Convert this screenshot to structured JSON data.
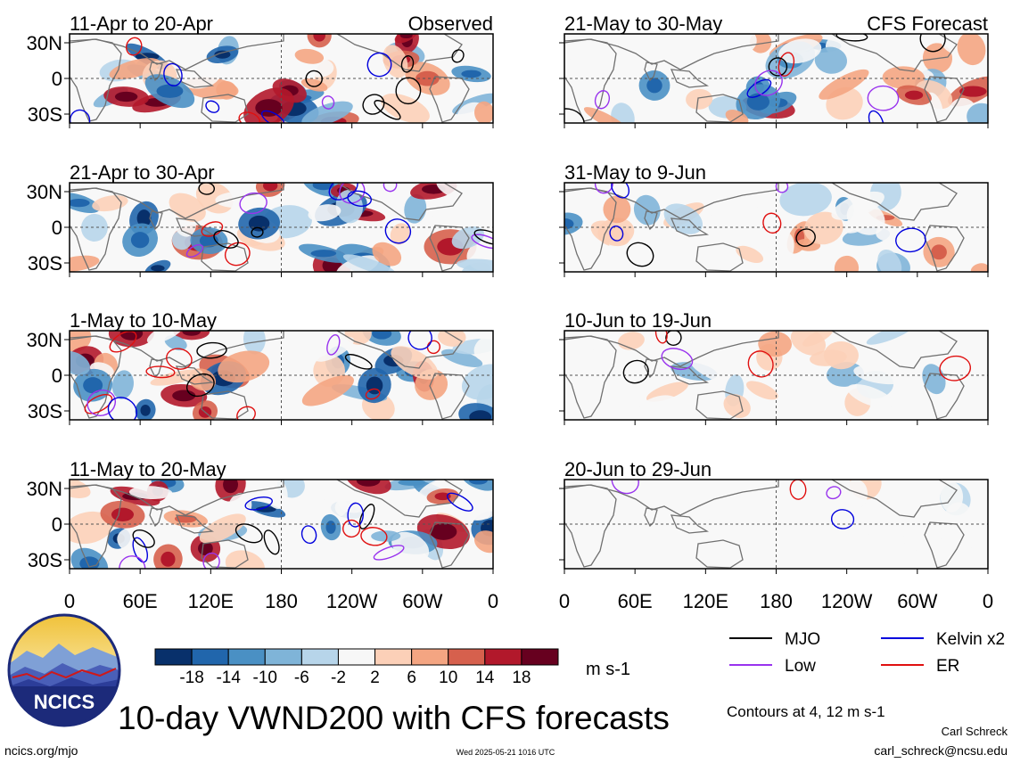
{
  "columns": [
    {
      "header_right": "Observed",
      "panels": [
        {
          "title": "11-Apr to 20-Apr"
        },
        {
          "title": "21-Apr to 30-Apr"
        },
        {
          "title": "1-May to 10-May"
        },
        {
          "title": "11-May to 20-May"
        }
      ]
    },
    {
      "header_right": "CFS Forecast",
      "panels": [
        {
          "title": "21-May to 30-May"
        },
        {
          "title": "31-May to 9-Jun"
        },
        {
          "title": "10-Jun to 19-Jun"
        },
        {
          "title": "20-Jun to 29-Jun"
        }
      ]
    }
  ],
  "lat_labels": [
    "30N",
    "0",
    "30S"
  ],
  "lon_labels": [
    "0",
    "60E",
    "120E",
    "180",
    "120W",
    "60W",
    "0"
  ],
  "colorbar": {
    "tick_labels": [
      "-18",
      "-14",
      "-10",
      "-6",
      "-2",
      "2",
      "6",
      "10",
      "14",
      "18"
    ],
    "unit": "m s-1",
    "colors": [
      "#08306b",
      "#2166ac",
      "#4a90c4",
      "#7fb4d8",
      "#b7d5ea",
      "#f7f7f7",
      "#fcd0b8",
      "#f4a582",
      "#d6604d",
      "#b2182b",
      "#67001f"
    ]
  },
  "legend": [
    {
      "label": "MJO",
      "color": "#000000"
    },
    {
      "label": "Kelvin x2",
      "color": "#0000dd"
    },
    {
      "label": "Low",
      "color": "#9933ee"
    },
    {
      "label": "ER",
      "color": "#e01010"
    }
  ],
  "contour_note": "Contours at 4, 12 m s-1",
  "title": "10-day VWND200 with CFS forecasts",
  "logo_text": "NCICS",
  "footer": {
    "url": "ncics.org/mjo",
    "timestamp": "Wed 2025-05-21 1016 UTC",
    "author": "Carl Schreck",
    "email": "carl_schreck@ncsu.edu"
  }
}
